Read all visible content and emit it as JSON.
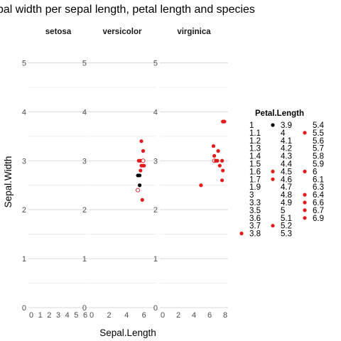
{
  "chart_data": {
    "type": "scatter",
    "title": "pal width per sepal length, petal length and species",
    "xlabel": "Sepal.Length",
    "ylabel": "Sepal.Width",
    "ylim": [
      0,
      5.5
    ],
    "grid": true,
    "facets": [
      {
        "name": "setosa",
        "xlim": [
          0,
          6
        ],
        "x_ticks": [
          "0",
          "1",
          "2",
          "3",
          "4",
          "5",
          "6"
        ],
        "points": []
      },
      {
        "name": "versicolor",
        "xlim": [
          0,
          7
        ],
        "x_ticks": [
          "0",
          "2",
          "4",
          "6"
        ],
        "points": [
          {
            "x": 5.6,
            "y": 3.0,
            "petal": "4.5"
          },
          {
            "x": 5.7,
            "y": 2.9,
            "petal": "4.6"
          },
          {
            "x": 5.9,
            "y": 2.9,
            "petal": "4.5"
          },
          {
            "x": 5.4,
            "y": 3.0,
            "petal": "4.5"
          },
          {
            "x": 5.9,
            "y": 3.0,
            "petal": "4.2"
          },
          {
            "x": 5.9,
            "y": 3.2,
            "petal": "4.8"
          },
          {
            "x": 6.0,
            "y": 2.9,
            "petal": "4.5"
          },
          {
            "x": 5.7,
            "y": 3.4,
            "petal": "4.5"
          },
          {
            "x": 5.6,
            "y": 2.8,
            "petal": "4.9"
          },
          {
            "x": 5.5,
            "y": 2.7,
            "petal": "3.9"
          },
          {
            "x": 5.3,
            "y": 2.7,
            "petal": "3.9"
          },
          {
            "x": 5.5,
            "y": 2.5,
            "petal": "4"
          },
          {
            "x": 5.3,
            "y": 2.4,
            "petal": "3.3"
          },
          {
            "x": 5.8,
            "y": 2.2,
            "petal": "4.5"
          }
        ]
      },
      {
        "name": "virginica",
        "xlim": [
          0,
          8
        ],
        "x_ticks": [
          "0",
          "2",
          "4",
          "6",
          "8"
        ],
        "points": [
          {
            "x": 7.7,
            "y": 3.8,
            "petal": "6.7"
          },
          {
            "x": 7.9,
            "y": 3.8,
            "petal": "6.4"
          },
          {
            "x": 6.5,
            "y": 3.3,
            "petal": "5.5"
          },
          {
            "x": 6.6,
            "y": 3.1,
            "petal": "5.5"
          },
          {
            "x": 7.1,
            "y": 3.2,
            "petal": "6"
          },
          {
            "x": 6.6,
            "y": 3.0,
            "petal": "5.8"
          },
          {
            "x": 6.8,
            "y": 3.0,
            "petal": "5.5"
          },
          {
            "x": 7.0,
            "y": 3.0,
            "petal": "6.1"
          },
          {
            "x": 7.6,
            "y": 3.0,
            "petal": "6.6"
          },
          {
            "x": 7.3,
            "y": 2.9,
            "petal": "6.3"
          },
          {
            "x": 7.7,
            "y": 2.8,
            "petal": "6.7"
          },
          {
            "x": 7.6,
            "y": 2.6,
            "petal": "6.9"
          },
          {
            "x": 4.9,
            "y": 2.5,
            "petal": "4.5"
          }
        ]
      }
    ],
    "legend": {
      "title": "Petal.Length",
      "placement": "right",
      "columns": [
        [
          "1",
          "1.1",
          "1.2",
          "1.3",
          "1.4",
          "1.5",
          "1.6",
          "1.7",
          "1.9",
          "3",
          "3.3",
          "3.5",
          "3.6",
          "3.7",
          "3.8"
        ],
        [
          "3.9",
          "4",
          "4.1",
          "4.2",
          "4.3",
          "4.4",
          "4.5",
          "4.6",
          "4.7",
          "4.8",
          "4.9",
          "5",
          "5.1",
          "5.2",
          "5.3"
        ],
        [
          "5.4",
          "5.5",
          "5.6",
          "5.7",
          "5.8",
          "5.9",
          "6",
          "6.1",
          "6.3",
          "6.4",
          "6.6",
          "6.7",
          "6.9"
        ]
      ],
      "styles": {
        "3.8": "filled-red",
        "3.9": "filled-black",
        "4.5": "filled-red",
        "4.6": "filled-red",
        "5.2": "filled-red",
        "5.5": "filled-red",
        "6": "filled-red",
        "6.4": "filled-red",
        "6.6": "filled-red",
        "6.7": "filled-red",
        "6.9": "filled-red"
      }
    },
    "colors": {
      "filled-red": "#e41a1c",
      "filled-black": "#000000",
      "hollow-red": "#e41a1c",
      "grid": "#d9d9d9",
      "grid-minor": "#ececec"
    }
  }
}
